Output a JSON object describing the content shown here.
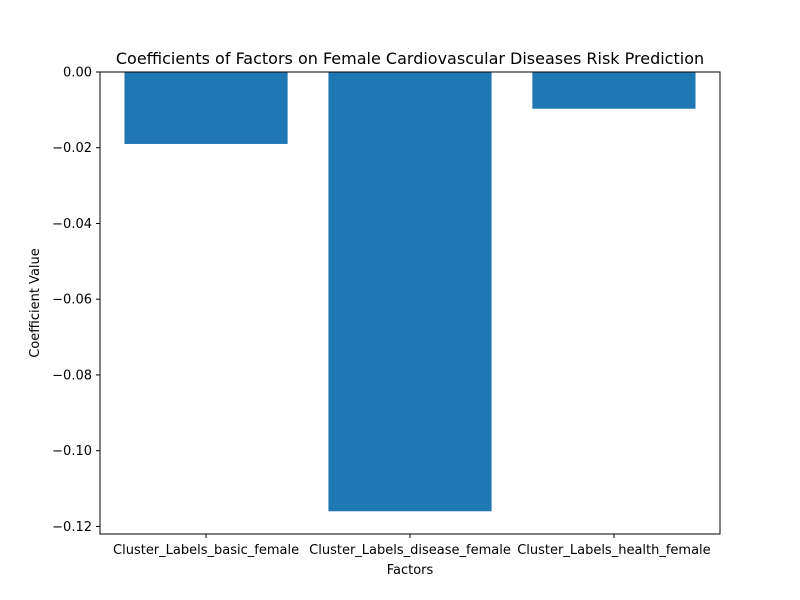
{
  "chart_data": {
    "type": "bar",
    "title": "Coefficients of Factors on Female Cardiovascular Diseases Risk Prediction",
    "xlabel": "Factors",
    "ylabel": "Coefficient Value",
    "categories": [
      "Cluster_Labels_basic_female",
      "Cluster_Labels_disease_female",
      "Cluster_Labels_health_female"
    ],
    "values": [
      -0.019,
      -0.116,
      -0.0097
    ],
    "ylim": [
      -0.122,
      0.0
    ],
    "yticks": [
      0.0,
      -0.02,
      -0.04,
      -0.06,
      -0.08,
      -0.1,
      -0.12
    ],
    "ytick_labels": [
      "0.00",
      "−0.02",
      "−0.04",
      "−0.06",
      "−0.08",
      "−0.10",
      "−0.12"
    ],
    "grid": false,
    "bar_color": "#1f77b4"
  }
}
